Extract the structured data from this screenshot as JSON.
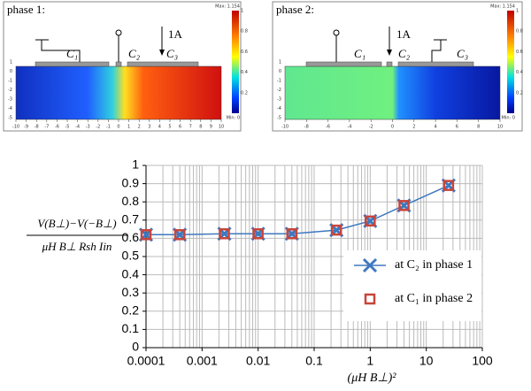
{
  "panels": [
    {
      "title": "phase 1:",
      "labels": [
        "C₁",
        "C₂",
        "C₃",
        "1A"
      ],
      "max": "Max: 1.154",
      "min": "Min: 0",
      "xticks": [
        -10,
        -9,
        -8,
        -7,
        -6,
        -5,
        -4,
        -3,
        -2,
        -1,
        0,
        1,
        2,
        3,
        4,
        5,
        6,
        7,
        8,
        9,
        10
      ],
      "yticks": [
        1,
        0,
        -1,
        -2,
        -3,
        -4,
        -5
      ],
      "cticks": [
        1,
        0.8,
        0.6,
        0.4,
        0.2
      ]
    },
    {
      "title": "phase 2:",
      "labels": [
        "C₁",
        "C₂",
        "C₃",
        "1A"
      ],
      "max": "Max: 1.154",
      "min": "Min: 0",
      "xticks": [
        -10,
        -8,
        -6,
        -4,
        -2,
        0,
        2,
        4,
        6,
        8,
        10
      ],
      "yticks": [
        1,
        0,
        -1,
        -2,
        -3,
        -4,
        -5
      ],
      "cticks": [
        1,
        0.8,
        0.6,
        0.4,
        0.2
      ]
    }
  ],
  "chart_data": {
    "type": "line",
    "ylabel_numerator": "V(B⊥)−V(−B⊥)",
    "ylabel_denominator": "μH B⊥ Rsh Iin",
    "xlabel": "(μH B⊥)²",
    "x": [
      0.0001,
      0.0004,
      0.0025,
      0.01,
      0.04,
      0.25,
      1,
      4,
      25
    ],
    "series": [
      {
        "name": "at C₂ in phase 1",
        "color": "#3f78c0",
        "marker": "x",
        "values": [
          0.62,
          0.62,
          0.625,
          0.625,
          0.625,
          0.645,
          0.695,
          0.78,
          0.89
        ]
      },
      {
        "name": "at C₁ in phase 2",
        "color": "#c8453a",
        "marker": "square",
        "values": [
          0.62,
          0.62,
          0.625,
          0.625,
          0.625,
          0.645,
          0.695,
          0.78,
          0.89
        ]
      }
    ],
    "xlog": true,
    "xlim": [
      0.0001,
      100
    ],
    "xticks": [
      0.0001,
      0.001,
      0.01,
      0.1,
      1,
      10,
      100
    ],
    "ylim": [
      0,
      1
    ],
    "yticks": [
      0,
      0.1,
      0.2,
      0.3,
      0.4,
      0.5,
      0.6,
      0.7,
      0.8,
      0.9,
      1
    ],
    "grid": true
  }
}
